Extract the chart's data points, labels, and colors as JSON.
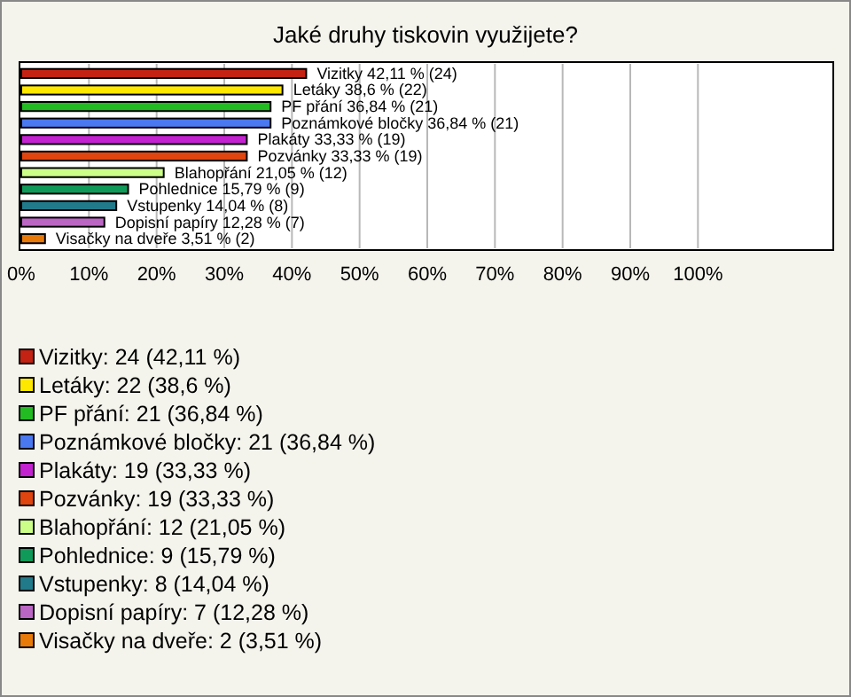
{
  "chart_data": {
    "type": "bar",
    "orientation": "horizontal",
    "title": "Jaké druhy tiskovin využijete?",
    "categories": [
      null,
      null,
      null,
      null,
      null,
      null,
      null,
      null,
      null,
      null,
      null
    ],
    "values": [
      42.11,
      38.6,
      36.84,
      36.84,
      33.33,
      33.33,
      21.05,
      15.79,
      14.04,
      12.28,
      3.51
    ],
    "colors": [
      "#c42212",
      "#ffe800",
      "#22bb22",
      "#4a78f0",
      "#c322d0",
      "#e0440f",
      "#ccff88",
      "#109a5a",
      "#217a8a",
      "#bb66c4",
      "#e87a0a"
    ],
    "value_labels": [
      "Vizitky 42,11 % (24)",
      "Letáky 38,6 % (22)",
      "PF přání 36,84 % (21)",
      "Poznámkové bločky 36,84 % (21)",
      "Plakáty 33,33 % (19)",
      "Pozvánky 33,33 % (19)",
      "Blahopřání 21,05 % (12)",
      "Pohlednice 15,79 % (9)",
      "Vstupenky 14,04 % (8)",
      "Dopisní papíry 12,28 % (7)",
      "Visačky na dveře 3,51 % (2)"
    ],
    "xlim": [
      0,
      120
    ],
    "xticks": [
      {
        "value": 0,
        "label": "0%"
      },
      {
        "value": 10,
        "label": "10%"
      },
      {
        "value": 20,
        "label": "20%"
      },
      {
        "value": 30,
        "label": "30%"
      },
      {
        "value": 40,
        "label": "40%"
      },
      {
        "value": 50,
        "label": "50%"
      },
      {
        "value": 60,
        "label": "60%"
      },
      {
        "value": 70,
        "label": "70%"
      },
      {
        "value": 80,
        "label": "80%"
      },
      {
        "value": 90,
        "label": "90%"
      },
      {
        "value": 100,
        "label": "100%"
      }
    ],
    "grid": "x",
    "annotations": [
      "Vizitky: 24 (42,11 %)",
      "Letáky: 22 (38,6 %)",
      "PF přání: 21 (36,84 %)",
      "Poznámkové bločky: 21 (36,84 %)",
      "Plakáty: 19 (33,33 %)",
      "Pozvánky: 19 (33,33 %)",
      "Blahopřání: 12 (21,05 %)",
      "Pohlednice: 9 (15,79 %)",
      "Vstupenky: 8 (14,04 %)",
      "Dopisní papíry: 7 (12,28 %)",
      "Visačky na dveře: 2 (3,51 %)"
    ]
  }
}
